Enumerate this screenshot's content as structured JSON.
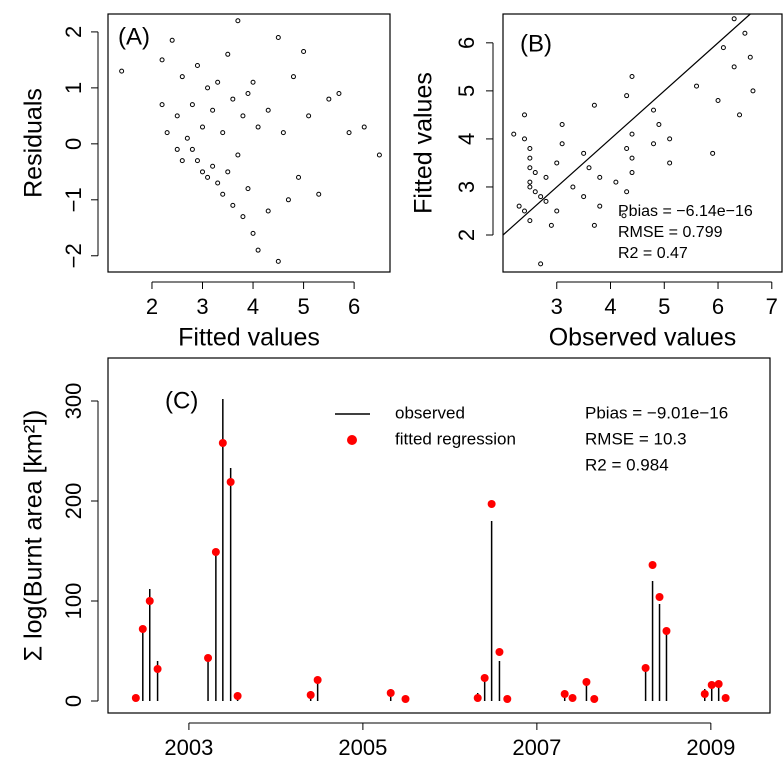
{
  "chart_data": [
    {
      "type": "scatter",
      "label": "(A)",
      "xlabel": "Fitted values",
      "ylabel": "Residuals",
      "x": [
        1.4,
        2.2,
        2.2,
        2.4,
        2.3,
        2.5,
        2.5,
        2.6,
        2.6,
        2.7,
        2.8,
        2.8,
        2.9,
        2.9,
        3.0,
        3.0,
        3.1,
        3.1,
        3.2,
        3.2,
        3.3,
        3.3,
        3.4,
        3.4,
        3.5,
        3.5,
        3.6,
        3.6,
        3.7,
        3.7,
        3.8,
        3.8,
        3.9,
        3.9,
        4.0,
        4.0,
        4.1,
        4.1,
        4.3,
        4.3,
        4.5,
        4.5,
        4.6,
        4.7,
        4.8,
        4.9,
        5.0,
        5.1,
        5.3,
        5.5,
        5.7,
        5.9,
        6.2,
        6.5
      ],
      "values": [
        1.3,
        1.5,
        0.7,
        1.85,
        0.2,
        -0.1,
        0.5,
        1.2,
        -0.3,
        0.1,
        0.7,
        -0.1,
        1.4,
        -0.3,
        0.3,
        -0.5,
        1.0,
        -0.6,
        0.6,
        -0.4,
        1.1,
        -0.7,
        0.2,
        -0.9,
        1.6,
        -0.5,
        0.8,
        -1.1,
        2.2,
        -0.2,
        0.5,
        -1.3,
        0.9,
        -0.8,
        1.1,
        -1.6,
        0.3,
        -1.9,
        0.6,
        -1.2,
        1.9,
        -2.1,
        0.2,
        -1.0,
        1.2,
        -0.6,
        1.65,
        0.5,
        -0.9,
        0.8,
        0.9,
        0.2,
        0.3,
        -0.2
      ],
      "color": "#000000",
      "xlim": [
        1.13,
        6.71
      ],
      "xticks": [
        2,
        3,
        4,
        5,
        6
      ],
      "ylim": [
        -2.29,
        2.32
      ],
      "yticks": [
        {
          "value": -2,
          "label": "−2"
        },
        {
          "value": -1,
          "label": "−1"
        },
        0,
        1,
        2
      ]
    },
    {
      "type": "scatter",
      "label": "(B)",
      "xlabel": "Observed values",
      "ylabel": "Fitted values",
      "x": [
        2.7,
        3.7,
        2.9,
        4.25,
        2.5,
        2.4,
        3.0,
        3.8,
        2.3,
        2.8,
        3.5,
        2.7,
        4.3,
        2.6,
        3.3,
        2.5,
        4.1,
        2.5,
        3.8,
        2.8,
        4.4,
        2.6,
        3.6,
        2.5,
        5.1,
        3.0,
        4.4,
        2.5,
        5.9,
        3.5,
        4.3,
        2.5,
        4.8,
        3.1,
        5.1,
        2.4,
        4.4,
        2.2,
        4.9,
        3.1,
        6.4,
        2.4,
        4.8,
        3.7,
        6.0,
        4.3,
        6.65,
        5.6,
        4.4,
        6.3,
        6.6,
        6.1,
        6.5,
        6.3
      ],
      "values": [
        1.4,
        2.2,
        2.2,
        2.4,
        2.3,
        2.5,
        2.5,
        2.6,
        2.6,
        2.7,
        2.8,
        2.8,
        2.9,
        2.9,
        3.0,
        3.0,
        3.1,
        3.1,
        3.2,
        3.2,
        3.3,
        3.3,
        3.4,
        3.4,
        3.5,
        3.5,
        3.6,
        3.6,
        3.7,
        3.7,
        3.8,
        3.8,
        3.9,
        3.9,
        4.0,
        4.0,
        4.1,
        4.1,
        4.3,
        4.3,
        4.5,
        4.5,
        4.6,
        4.7,
        4.8,
        4.9,
        5.0,
        5.1,
        5.3,
        5.5,
        5.7,
        5.9,
        6.2,
        6.5
      ],
      "color": "#000000",
      "identity_line": true,
      "annotations": [
        "Pbias = −6.14e−16",
        "RMSE = 0.799",
        "R2 = 0.47"
      ],
      "xlim": [
        2.0,
        7.19
      ],
      "xticks": [
        3,
        4,
        5,
        6,
        7
      ],
      "ylim": [
        1.23,
        6.6
      ],
      "yticks": [
        2,
        3,
        4,
        5,
        6
      ]
    },
    {
      "type": "stem",
      "label": "(C)",
      "ylabel": "Σ log(Burnt area [km²])",
      "x": [
        2002.39,
        2002.47,
        2002.55,
        2002.64,
        2003.22,
        2003.31,
        2003.39,
        2003.48,
        2003.56,
        2004.4,
        2004.48,
        2005.32,
        2005.49,
        2006.32,
        2006.4,
        2006.48,
        2006.57,
        2006.66,
        2007.32,
        2007.41,
        2007.57,
        2007.66,
        2008.25,
        2008.33,
        2008.41,
        2008.49,
        2008.93,
        2009.01,
        2009.09,
        2009.17
      ],
      "series": [
        {
          "name": "observed",
          "color": "#000000",
          "style": "stem",
          "values": [
            2,
            72,
            112,
            40,
            42,
            148,
            302,
            233,
            7,
            10,
            20,
            12,
            2,
            8,
            22,
            180,
            40,
            5,
            10,
            3,
            17,
            2,
            35,
            120,
            97,
            71,
            12,
            18,
            18,
            3
          ]
        },
        {
          "name": "fitted regression",
          "color": "#ff0000",
          "style": "points",
          "values": [
            3,
            72,
            100,
            32,
            43,
            149,
            258,
            219,
            5,
            6,
            21,
            8,
            2,
            3,
            23,
            197,
            49,
            2,
            7,
            3,
            19,
            2,
            33,
            136,
            104,
            70,
            7,
            16,
            17,
            3
          ]
        }
      ],
      "annotations": [
        "Pbias = −9.01e−16",
        "RMSE = 10.3",
        "R2 = 0.984"
      ],
      "xlim": [
        2002.07,
        2009.68
      ],
      "xticks": [
        2003,
        2005,
        2007,
        2009
      ],
      "ylim": [
        -12,
        343
      ],
      "yticks": [
        0,
        100,
        200,
        300
      ]
    }
  ]
}
